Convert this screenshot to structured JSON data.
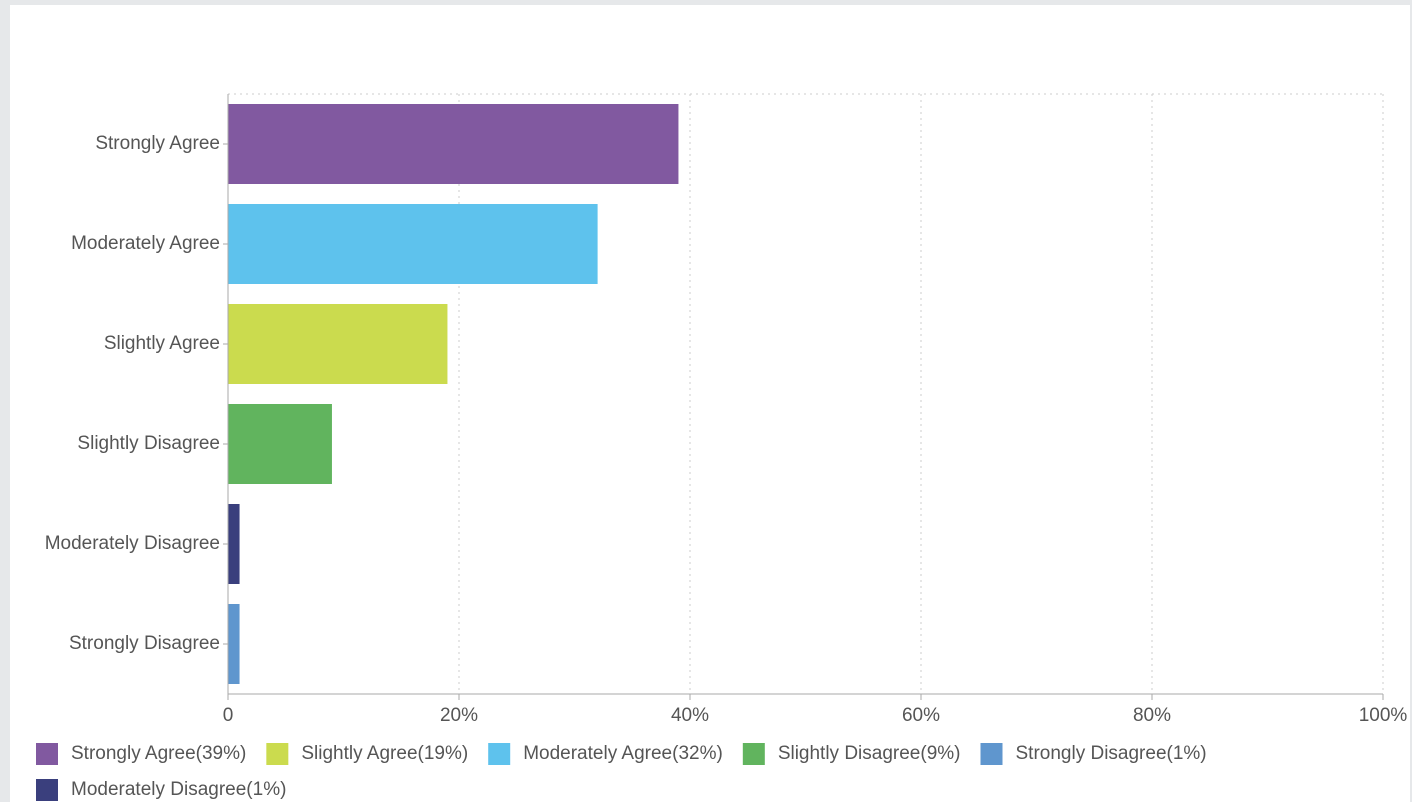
{
  "chart_data": {
    "type": "hbar",
    "categories": [
      "Strongly Agree",
      "Moderately Agree",
      "Slightly Agree",
      "Slightly Disagree",
      "Moderately Disagree",
      "Strongly Disagree"
    ],
    "values": [
      39,
      32,
      19,
      9,
      1,
      1
    ],
    "colors": [
      "#8159a0",
      "#5ec2ed",
      "#cbdb4e",
      "#61b45e",
      "#3a3f7d",
      "#5f96ce"
    ],
    "xlim": [
      0,
      100
    ],
    "xticks": [
      0,
      {
        "value": 20,
        "label": "20%"
      },
      {
        "value": 40,
        "label": "40%"
      },
      {
        "value": 60,
        "label": "60%"
      },
      {
        "value": 80,
        "label": "80%"
      },
      {
        "value": 100,
        "label": "100%"
      }
    ],
    "grid": true,
    "legend": [
      {
        "label": "Strongly Agree(39%)",
        "color": "#8159a0"
      },
      {
        "label": "Slightly Agree(19%)",
        "color": "#cbdb4e"
      },
      {
        "label": "Moderately Agree(32%)",
        "color": "#5ec2ed"
      },
      {
        "label": "Slightly Disagree(9%)",
        "color": "#61b45e"
      },
      {
        "label": "Strongly Disagree(1%)",
        "color": "#5f96ce"
      },
      {
        "label": "Moderately Disagree(1%)",
        "color": "#3a3f7d"
      }
    ]
  }
}
